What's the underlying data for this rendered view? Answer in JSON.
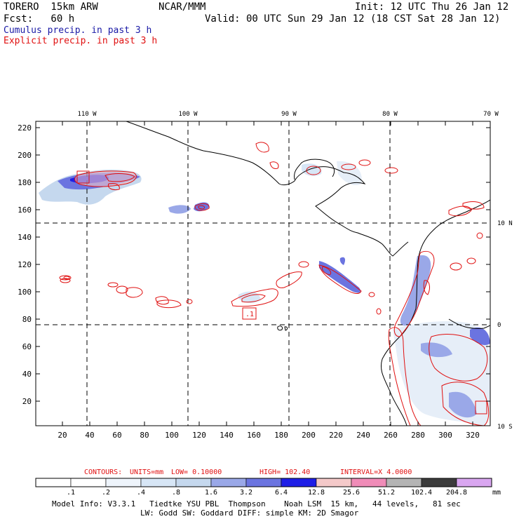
{
  "header": {
    "model": "TORERO  15km ARW",
    "org": "NCAR/MMM",
    "init": "Init: 12 UTC Thu 26 Jan 12",
    "fcst": "Fcst:   60 h",
    "valid": "Valid: 00 UTC Sun 29 Jan 12 (18 CST Sat 28 Jan 12)",
    "cumulus_title": "Cumulus precip. in past 3 h",
    "explicit_title": "Explicit precip. in past 3 h",
    "cumulus_color": "#1a1aa6",
    "explicit_color": "#e01010"
  },
  "map": {
    "lon_labels": [
      "110 W",
      "100 W",
      "90 W",
      "80 W",
      "70 W"
    ],
    "lat_labels": [
      "10 N",
      "0",
      "10 S"
    ],
    "y_ticks": [
      "220",
      "200",
      "180",
      "160",
      "140",
      "120",
      "100",
      "80",
      "60",
      "40",
      "20"
    ],
    "x_ticks": [
      "20",
      "40",
      "60",
      "80",
      "100",
      "120",
      "140",
      "160",
      "180",
      "200",
      "220",
      "240",
      "260",
      "280",
      "300",
      "320"
    ],
    "box_labels": [
      ".1"
    ]
  },
  "contour_info": {
    "contours": "CONTOURS:",
    "units": "UNITS=mm",
    "low": "LOW= 0.10000",
    "high": "HIGH=  102.40",
    "interval": "INTERVAL=X  4.0000",
    "color": "#e01010"
  },
  "legend": {
    "labels": [
      ".1",
      ".2",
      ".4",
      ".8",
      "1.6",
      "3.2",
      "6.4",
      "12.8",
      "25.6",
      "51.2",
      "102.4",
      "204.8"
    ],
    "unit": "mm",
    "colors": [
      "#ffffff",
      "#ffffff",
      "#eef4fb",
      "#d7e6f6",
      "#c5d8ee",
      "#9aa8e8",
      "#6b74e0",
      "#1e1ee6",
      "#f4c9c9",
      "#f08cb8",
      "#b4b4b4",
      "#3c3c3c",
      "#d9a6f0"
    ]
  },
  "footer": {
    "line1": "Model Info: V3.3.1   Tiedtke YSU PBL  Thompson    Noah LSM  15 km,   44 levels,   81 sec",
    "line2": "LW: Godd SW: Goddard DIFF: simple KM: 2D Smagor"
  }
}
